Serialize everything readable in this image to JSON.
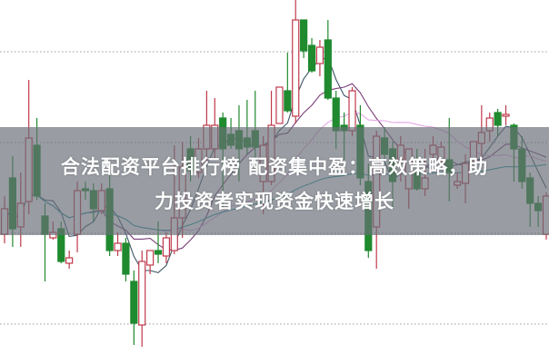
{
  "headline": {
    "line1": "合法配资平台排行榜 配资集中盈：高效策略，助",
    "line2": "力投资者实现资金快速增长"
  },
  "chart_data": {
    "type": "candlestick",
    "title": "",
    "xlabel": "",
    "ylabel": "",
    "ylim": [
      0,
      100
    ],
    "grid": "horizontal dotted",
    "ohlc_order": [
      "open",
      "high",
      "low",
      "close"
    ],
    "candles": [
      [
        35.5,
        46,
        33,
        42.5
      ],
      [
        51,
        57,
        32,
        37
      ],
      [
        37.5,
        52.5,
        32,
        44
      ],
      [
        44.5,
        78,
        41,
        62
      ],
      [
        60,
        67.5,
        45,
        46
      ],
      [
        40.5,
        44,
        22.5,
        35.5
      ],
      [
        34.5,
        39,
        34,
        36
      ],
      [
        37,
        39,
        27.5,
        28
      ],
      [
        27.5,
        31,
        26,
        29
      ],
      [
        35.5,
        50,
        30.5,
        47.5
      ],
      [
        48,
        50,
        45,
        47.5
      ],
      [
        47.5,
        49.5,
        39,
        42.5
      ],
      [
        42,
        49.5,
        41,
        47.5
      ],
      [
        48,
        52,
        29.5,
        31
      ],
      [
        31,
        36,
        29.5,
        33
      ],
      [
        33,
        34.5,
        22.5,
        24.5
      ],
      [
        22.5,
        25.5,
        5,
        11
      ],
      [
        10.5,
        31,
        4.5,
        28
      ],
      [
        27,
        31,
        24.5,
        31
      ],
      [
        31,
        39,
        27.5,
        30
      ],
      [
        29.5,
        36,
        27.5,
        34.5
      ],
      [
        31,
        60,
        30,
        40
      ],
      [
        40,
        61,
        34.5,
        54
      ],
      [
        59,
        62.5,
        50,
        53
      ],
      [
        52.5,
        62,
        51,
        59
      ],
      [
        59,
        75,
        55,
        65.5
      ],
      [
        59,
        73,
        56,
        65.5
      ],
      [
        67.5,
        69,
        42.5,
        59
      ],
      [
        63,
        67.5,
        59,
        60
      ],
      [
        64,
        71,
        50,
        59
      ],
      [
        62,
        72.5,
        57.5,
        59.5
      ],
      [
        64,
        75,
        54,
        59.5
      ],
      [
        50,
        62.5,
        41,
        60
      ],
      [
        50,
        75,
        49,
        65.5
      ],
      [
        66,
        76,
        66,
        76
      ],
      [
        75,
        85.5,
        69,
        69.5
      ],
      [
        68,
        100,
        66,
        94.5
      ],
      [
        94.5,
        94.5,
        84,
        86
      ],
      [
        87.5,
        89.5,
        80,
        80.5
      ],
      [
        82.5,
        89,
        79,
        87
      ],
      [
        89,
        94.5,
        72.5,
        73
      ],
      [
        73,
        75,
        59,
        64
      ],
      [
        65.5,
        69,
        56,
        64
      ],
      [
        64,
        76,
        62.5,
        75
      ],
      [
        65.5,
        71,
        49,
        51
      ],
      [
        50,
        55,
        29,
        31
      ],
      [
        37.5,
        64,
        26,
        62.5
      ],
      [
        62,
        65,
        56,
        57.5
      ],
      [
        59,
        61,
        42.5,
        50
      ],
      [
        56,
        62.5,
        50,
        60
      ],
      [
        48,
        59,
        42.5,
        59
      ],
      [
        52.5,
        59,
        47.5,
        48
      ],
      [
        48,
        59,
        46,
        51
      ],
      [
        57.5,
        62.5,
        56,
        60
      ],
      [
        55.5,
        61,
        55,
        59.5
      ],
      [
        56,
        67.5,
        44.5,
        52.5
      ],
      [
        49,
        52.5,
        48,
        50
      ],
      [
        49.5,
        57.5,
        44,
        55
      ],
      [
        55.5,
        61,
        55,
        61
      ],
      [
        60.5,
        71,
        56,
        63.5
      ],
      [
        64,
        69,
        61,
        67.5
      ],
      [
        69,
        70,
        62.5,
        65.5
      ],
      [
        68,
        71,
        65.5,
        68.5
      ],
      [
        65.5,
        66,
        50,
        59
      ],
      [
        59,
        62.5,
        48,
        50
      ],
      [
        51,
        52.5,
        37.5,
        44
      ],
      [
        44,
        46,
        37.5,
        42
      ],
      [
        35.5,
        47,
        34,
        46
      ]
    ],
    "moving_averages": [
      5,
      10,
      20,
      60
    ],
    "colors": {
      "up": "#c0394b",
      "down": "#1f8a2e",
      "ma5": "#3d5566",
      "ma10": "#7a3f78",
      "ma20": "#e6a6e6",
      "ma60": "#2a9aa0",
      "grid": "#9a9a9a"
    }
  }
}
